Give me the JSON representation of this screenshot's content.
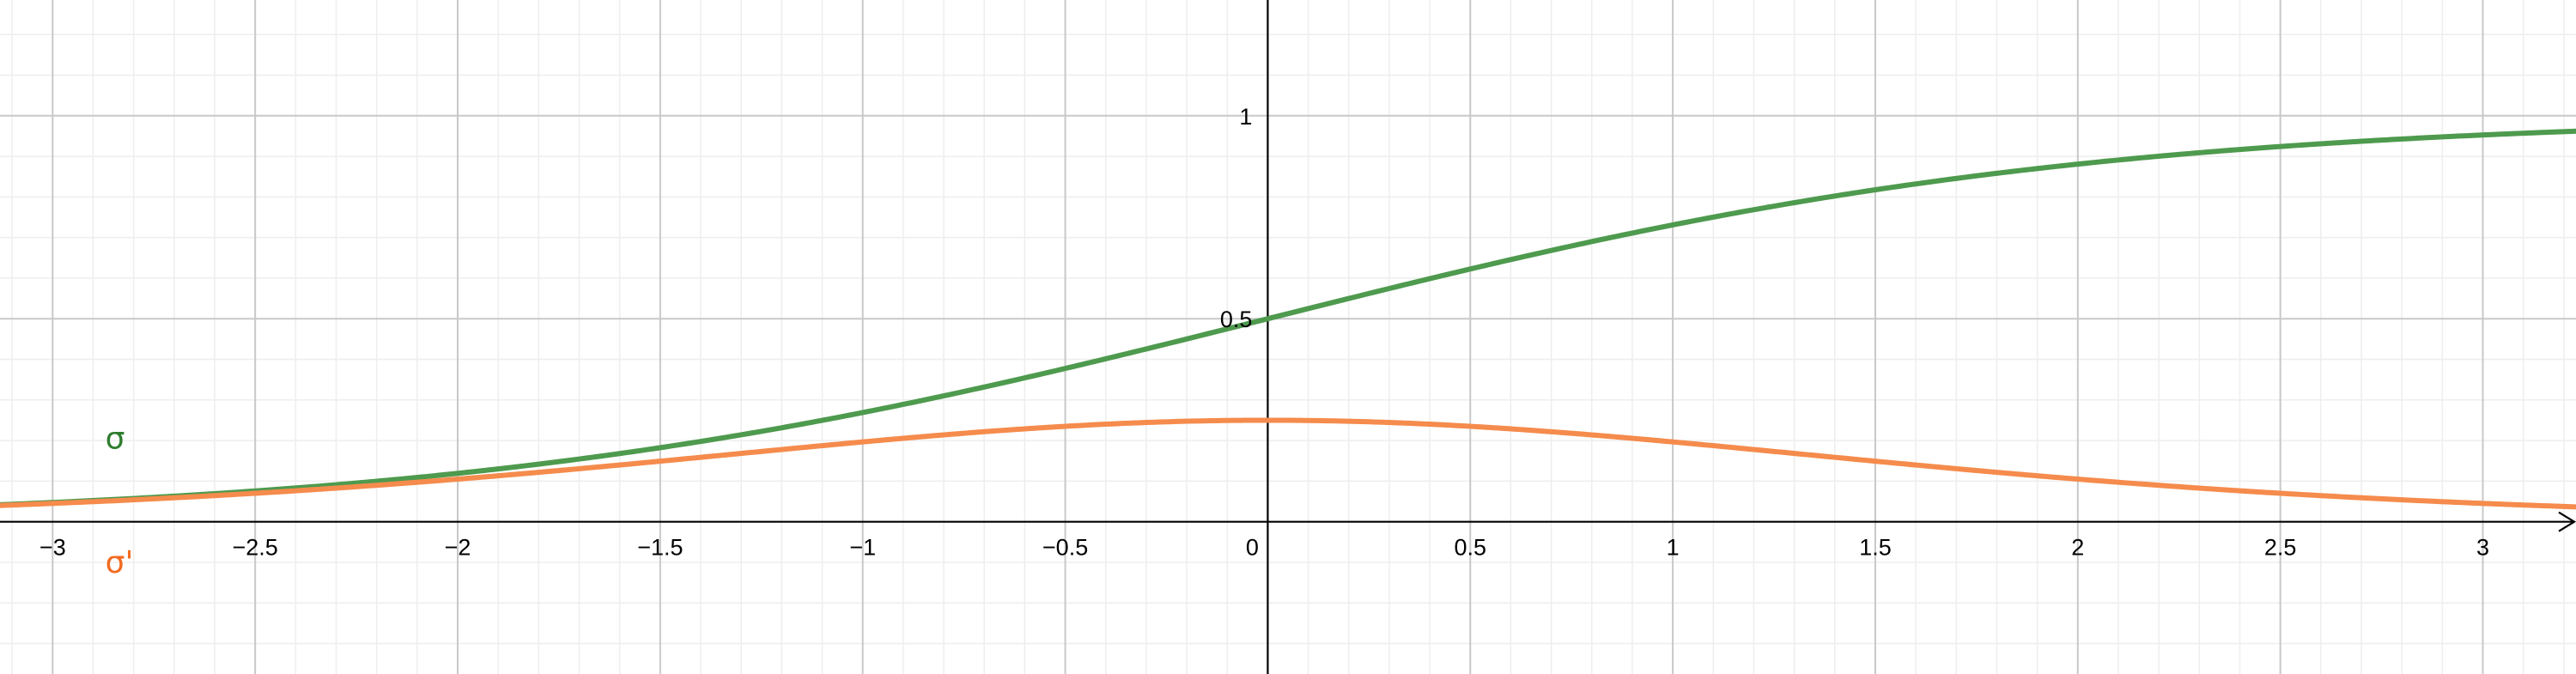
{
  "chart_data": {
    "type": "line",
    "title": "",
    "xlabel": "",
    "ylabel": "",
    "xlim": [
      -3.13,
      3.23
    ],
    "ylim": [
      -0.375,
      1.285
    ],
    "grid": true,
    "x_ticks": [
      -3,
      -2.5,
      -2,
      -1.5,
      -1,
      -0.5,
      0,
      0.5,
      1,
      1.5,
      2,
      2.5,
      3
    ],
    "x_tick_labels": [
      "−3",
      "−2.5",
      "−2",
      "−1.5",
      "−1",
      "−0.5",
      "0",
      "0.5",
      "1",
      "1.5",
      "2",
      "2.5",
      "3"
    ],
    "y_ticks": [
      0.5,
      1
    ],
    "y_tick_labels": [
      "0.5",
      "1"
    ],
    "series": [
      {
        "name": "σ",
        "color": "#4e9a4e",
        "label_color": "#2e7d2e",
        "function": "sigmoid",
        "x": [
          -3,
          -2.5,
          -2,
          -1.5,
          -1,
          -0.5,
          0,
          0.5,
          1,
          1.5,
          2,
          2.5,
          3
        ],
        "values": [
          0.047,
          0.076,
          0.119,
          0.182,
          0.269,
          0.378,
          0.5,
          0.622,
          0.731,
          0.818,
          0.881,
          0.924,
          0.953
        ]
      },
      {
        "name": "σ'",
        "color": "#f58b4c",
        "label_color": "#f26a21",
        "function": "sigmoid_derivative",
        "x": [
          -3,
          -2.5,
          -2,
          -1.5,
          -1,
          -0.5,
          0,
          0.5,
          1,
          1.5,
          2,
          2.5,
          3
        ],
        "values": [
          0.045,
          0.07,
          0.105,
          0.149,
          0.197,
          0.235,
          0.25,
          0.235,
          0.197,
          0.149,
          0.105,
          0.07,
          0.045
        ]
      }
    ]
  }
}
